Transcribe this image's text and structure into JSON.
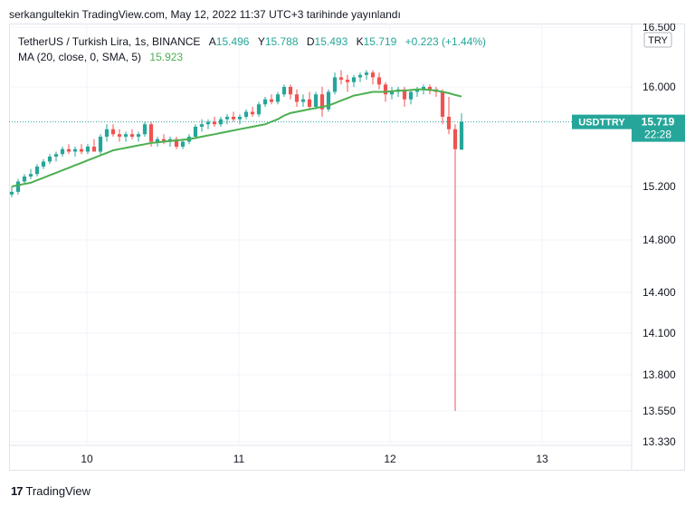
{
  "header": {
    "publish_line": "serkangultekin TradingView.com, May 12, 2022 11:37 UTC+3 tarihinde yayınlandı"
  },
  "legend": {
    "symbol": "TetherUS / Turkish Lira, 1s, BINANCE",
    "open_label": "A",
    "open_value": "15.496",
    "high_label": "Y",
    "high_value": "15.788",
    "low_label": "D",
    "low_value": "15.493",
    "close_label": "K",
    "close_value": "15.719",
    "change": "+0.223 (+1.44%)",
    "ma_label": "MA (20, close, 0, SMA, 5)",
    "ma_value": "15.923"
  },
  "price_axis": {
    "currency_badge": "TRY",
    "symbol_badge": "USDTTRY",
    "price_badge": "15.719",
    "countdown": "22:28"
  },
  "footer": {
    "logo_mark": "17",
    "brand": "TradingView"
  },
  "colors": {
    "up": "#26a69a",
    "down": "#ef5350",
    "ma": "#4caf50",
    "grid": "#f0f3fa",
    "price_line": "#26a69a"
  },
  "chart_data": {
    "type": "candlestick",
    "title": "TetherUS / Turkish Lira, 1s, BINANCE",
    "x_tick_labels": [
      "10",
      "11",
      "12",
      "13"
    ],
    "y_tick_labels": [
      "16.500",
      "16.000",
      "15.200",
      "14.800",
      "14.400",
      "14.100",
      "13.800",
      "13.550",
      "13.330"
    ],
    "y_ticks": [
      16.5,
      16.0,
      15.2,
      14.8,
      14.4,
      14.1,
      13.8,
      13.55,
      13.33
    ],
    "last_price": 15.719,
    "candles_ohlc": [
      [
        15.14,
        15.2,
        15.12,
        15.16
      ],
      [
        15.16,
        15.26,
        15.14,
        15.24
      ],
      [
        15.24,
        15.3,
        15.22,
        15.28
      ],
      [
        15.28,
        15.34,
        15.26,
        15.3
      ],
      [
        15.3,
        15.38,
        15.28,
        15.36
      ],
      [
        15.36,
        15.42,
        15.34,
        15.4
      ],
      [
        15.4,
        15.46,
        15.38,
        15.44
      ],
      [
        15.44,
        15.48,
        15.4,
        15.46
      ],
      [
        15.46,
        15.52,
        15.44,
        15.5
      ],
      [
        15.5,
        15.54,
        15.46,
        15.48
      ],
      [
        15.48,
        15.52,
        15.44,
        15.5
      ],
      [
        15.5,
        15.54,
        15.46,
        15.48
      ],
      [
        15.48,
        15.54,
        15.46,
        15.52
      ],
      [
        15.52,
        15.58,
        15.5,
        15.48
      ],
      [
        15.48,
        15.62,
        15.46,
        15.6
      ],
      [
        15.6,
        15.7,
        15.56,
        15.66
      ],
      [
        15.66,
        15.7,
        15.6,
        15.62
      ],
      [
        15.62,
        15.66,
        15.56,
        15.6
      ],
      [
        15.6,
        15.64,
        15.56,
        15.62
      ],
      [
        15.62,
        15.66,
        15.58,
        15.6
      ],
      [
        15.6,
        15.64,
        15.56,
        15.62
      ],
      [
        15.62,
        15.72,
        15.6,
        15.7
      ],
      [
        15.7,
        15.72,
        15.52,
        15.56
      ],
      [
        15.56,
        15.6,
        15.52,
        15.58
      ],
      [
        15.58,
        15.62,
        15.54,
        15.56
      ],
      [
        15.56,
        15.6,
        15.52,
        15.58
      ],
      [
        15.58,
        15.6,
        15.5,
        15.52
      ],
      [
        15.52,
        15.58,
        15.5,
        15.56
      ],
      [
        15.56,
        15.62,
        15.54,
        15.6
      ],
      [
        15.6,
        15.7,
        15.58,
        15.68
      ],
      [
        15.68,
        15.74,
        15.64,
        15.7
      ],
      [
        15.7,
        15.74,
        15.66,
        15.72
      ],
      [
        15.72,
        15.76,
        15.68,
        15.7
      ],
      [
        15.7,
        15.76,
        15.68,
        15.74
      ],
      [
        15.74,
        15.78,
        15.7,
        15.76
      ],
      [
        15.76,
        15.8,
        15.72,
        15.74
      ],
      [
        15.74,
        15.78,
        15.7,
        15.76
      ],
      [
        15.76,
        15.82,
        15.74,
        15.8
      ],
      [
        15.8,
        15.84,
        15.76,
        15.78
      ],
      [
        15.78,
        15.88,
        15.76,
        15.86
      ],
      [
        15.86,
        15.92,
        15.84,
        15.9
      ],
      [
        15.9,
        15.94,
        15.86,
        15.88
      ],
      [
        15.88,
        15.96,
        15.86,
        15.94
      ],
      [
        15.94,
        16.02,
        15.92,
        16.0
      ],
      [
        16.0,
        16.02,
        15.9,
        15.94
      ],
      [
        15.94,
        15.98,
        15.84,
        15.88
      ],
      [
        15.88,
        15.94,
        15.84,
        15.9
      ],
      [
        15.9,
        15.96,
        15.82,
        15.84
      ],
      [
        15.84,
        15.96,
        15.82,
        15.94
      ],
      [
        15.94,
        16.0,
        15.76,
        15.82
      ],
      [
        15.82,
        15.98,
        15.8,
        15.96
      ],
      [
        15.96,
        16.12,
        15.94,
        16.08
      ],
      [
        16.08,
        16.14,
        16.02,
        16.06
      ],
      [
        16.06,
        16.1,
        15.96,
        16.04
      ],
      [
        16.04,
        16.1,
        16.0,
        16.08
      ],
      [
        16.08,
        16.12,
        16.04,
        16.1
      ],
      [
        16.1,
        16.14,
        16.06,
        16.12
      ],
      [
        16.12,
        16.14,
        16.02,
        16.08
      ],
      [
        16.08,
        16.12,
        15.98,
        16.02
      ],
      [
        16.02,
        16.04,
        15.88,
        15.94
      ],
      [
        15.94,
        16.0,
        15.9,
        15.96
      ],
      [
        15.96,
        16.0,
        15.92,
        15.98
      ],
      [
        15.98,
        16.0,
        15.84,
        15.9
      ],
      [
        15.9,
        15.98,
        15.86,
        15.96
      ],
      [
        15.96,
        16.0,
        15.92,
        15.98
      ],
      [
        15.98,
        16.02,
        15.94,
        16.0
      ],
      [
        16.0,
        16.02,
        15.94,
        15.98
      ],
      [
        15.98,
        16.0,
        15.92,
        15.96
      ],
      [
        15.96,
        15.98,
        15.7,
        15.76
      ],
      [
        15.76,
        15.92,
        15.62,
        15.66
      ],
      [
        15.66,
        15.7,
        13.55,
        15.5
      ],
      [
        15.496,
        15.788,
        15.493,
        15.719
      ]
    ],
    "ma_series": [
      15.2,
      15.21,
      15.22,
      15.23,
      15.25,
      15.27,
      15.29,
      15.31,
      15.33,
      15.35,
      15.37,
      15.39,
      15.41,
      15.43,
      15.45,
      15.47,
      15.49,
      15.5,
      15.51,
      15.52,
      15.53,
      15.54,
      15.55,
      15.555,
      15.56,
      15.565,
      15.57,
      15.575,
      15.58,
      15.59,
      15.6,
      15.61,
      15.62,
      15.63,
      15.64,
      15.65,
      15.66,
      15.67,
      15.68,
      15.69,
      15.7,
      15.72,
      15.74,
      15.77,
      15.79,
      15.8,
      15.81,
      15.82,
      15.83,
      15.84,
      15.85,
      15.87,
      15.89,
      15.91,
      15.93,
      15.94,
      15.95,
      15.96,
      15.96,
      15.96,
      15.965,
      15.97,
      15.97,
      15.975,
      15.98,
      15.98,
      15.975,
      15.97,
      15.96,
      15.95,
      15.935,
      15.923
    ]
  }
}
